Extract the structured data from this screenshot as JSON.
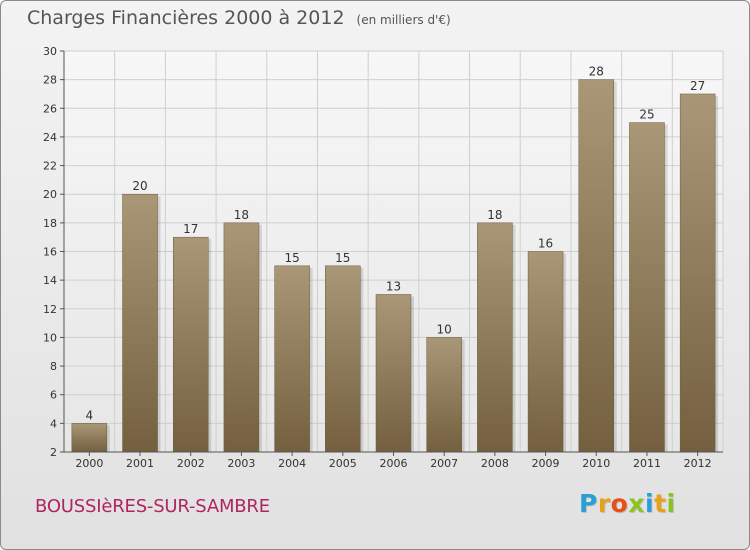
{
  "header": {
    "title": "Charges Financières 2000 à 2012",
    "subtitle": "(en milliers d'€)"
  },
  "footer": {
    "city": "BOUSSIèRES-SUR-SAMBRE",
    "logo_letters": [
      "P",
      "r",
      "o",
      "x",
      "i",
      "t",
      "i"
    ],
    "logo_colors": [
      "#2a9fd6",
      "#e8a21a",
      "#e8501a",
      "#8bc21e",
      "#2a9fd6",
      "#e8a21a",
      "#8bc21e"
    ]
  },
  "chart_data": {
    "type": "bar",
    "title": "Charges Financières 2000 à 2012",
    "subtitle": "(en milliers d'€)",
    "xlabel": "",
    "ylabel": "",
    "categories": [
      "2000",
      "2001",
      "2002",
      "2003",
      "2004",
      "2005",
      "2006",
      "2007",
      "2008",
      "2009",
      "2010",
      "2011",
      "2012"
    ],
    "values": [
      4,
      20,
      17,
      18,
      15,
      15,
      13,
      10,
      18,
      16,
      28,
      25,
      27
    ],
    "ylim": [
      2,
      30
    ],
    "yticks": [
      2,
      4,
      6,
      8,
      10,
      12,
      14,
      16,
      18,
      20,
      22,
      24,
      26,
      28,
      30
    ],
    "grid": true,
    "bar_color": "#8f7a5b",
    "grid_color": "#cfcfcf"
  }
}
